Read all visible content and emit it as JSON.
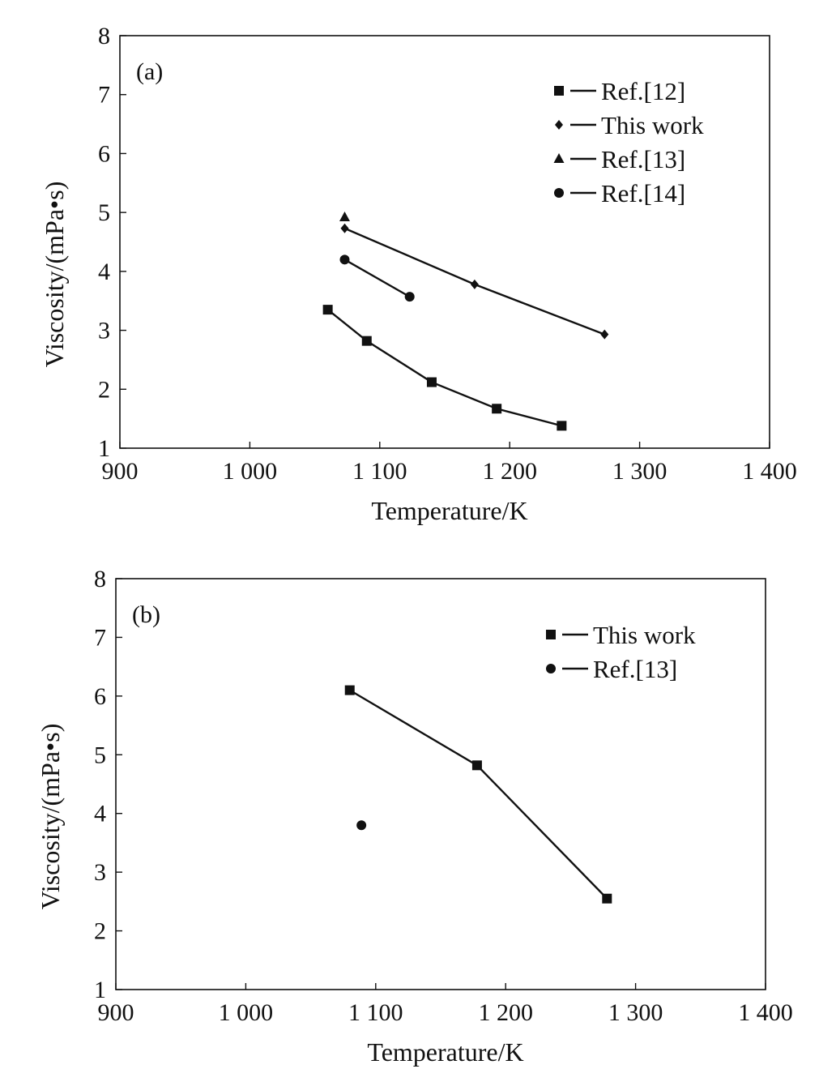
{
  "chart_data": [
    {
      "type": "line",
      "panel_label": "(a)",
      "xlabel": "Temperature/K",
      "ylabel": "Viscosity/(mPa•s)",
      "xlim": [
        900,
        1400
      ],
      "ylim": [
        1,
        8
      ],
      "xticks": [
        900,
        1000,
        1100,
        1200,
        1300,
        1400
      ],
      "xtick_labels": [
        "900",
        "1 000",
        "1 100",
        "1 200",
        "1 300",
        "1 400"
      ],
      "yticks": [
        1,
        2,
        3,
        4,
        5,
        6,
        7,
        8
      ],
      "ytick_labels": [
        "1",
        "2",
        "3",
        "4",
        "5",
        "6",
        "7",
        "8"
      ],
      "grid": false,
      "legend_position": "top-right",
      "series": [
        {
          "name": "Ref.[12]",
          "marker": "square",
          "x": [
            1060,
            1090,
            1140,
            1190,
            1240
          ],
          "y": [
            3.35,
            2.82,
            2.12,
            1.67,
            1.38
          ]
        },
        {
          "name": "This work",
          "marker": "diamond",
          "x": [
            1073,
            1173,
            1273
          ],
          "y": [
            4.73,
            3.78,
            2.93
          ]
        },
        {
          "name": "Ref.[13]",
          "marker": "triangle",
          "x": [
            1073
          ],
          "y": [
            4.92
          ]
        },
        {
          "name": "Ref.[14]",
          "marker": "circle",
          "x": [
            1073,
            1123
          ],
          "y": [
            4.2,
            3.57
          ]
        }
      ]
    },
    {
      "type": "line",
      "panel_label": "(b)",
      "xlabel": "Temperature/K",
      "ylabel": "Viscosity/(mPa•s)",
      "xlim": [
        900,
        1400
      ],
      "ylim": [
        1,
        8
      ],
      "xticks": [
        900,
        1000,
        1100,
        1200,
        1300,
        1400
      ],
      "xtick_labels": [
        "900",
        "1 000",
        "1 100",
        "1 200",
        "1 300",
        "1 400"
      ],
      "yticks": [
        1,
        2,
        3,
        4,
        5,
        6,
        7,
        8
      ],
      "ytick_labels": [
        "1",
        "2",
        "3",
        "4",
        "5",
        "6",
        "7",
        "8"
      ],
      "grid": false,
      "legend_position": "top-right",
      "series": [
        {
          "name": "This work",
          "marker": "square",
          "x": [
            1080,
            1178,
            1278
          ],
          "y": [
            6.1,
            4.82,
            2.55
          ]
        },
        {
          "name": "Ref.[13]",
          "marker": "circle",
          "x": [
            1089
          ],
          "y": [
            3.8
          ]
        }
      ]
    }
  ],
  "colors": {
    "ink": "#111111",
    "background": "#ffffff"
  }
}
